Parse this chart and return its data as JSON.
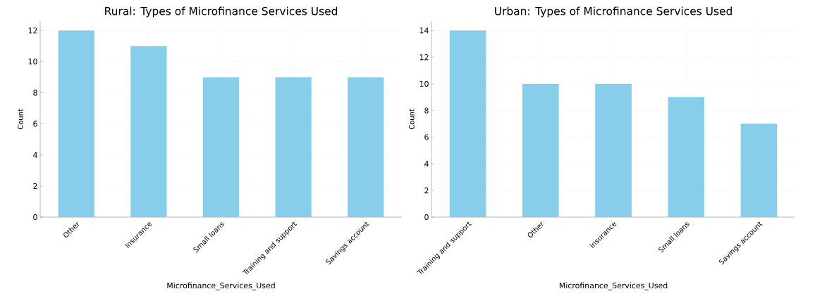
{
  "chart_data": [
    {
      "type": "bar",
      "title": "Rural: Types of Microfinance Services Used",
      "xlabel": "Microfinance_Services_Used",
      "ylabel": "Count",
      "categories": [
        "Other",
        "Insurance",
        "Small loans",
        "Training and support",
        "Savings account"
      ],
      "values": [
        12,
        11,
        9,
        9,
        9
      ],
      "color": "#87ceeb",
      "ylim": [
        0,
        12.6
      ],
      "yticks": [
        0,
        2,
        4,
        6,
        8,
        10,
        12
      ],
      "grid": true
    },
    {
      "type": "bar",
      "title": "Urban: Types of Microfinance Services Used",
      "xlabel": "Microfinance_Services_Used",
      "ylabel": "Count",
      "categories": [
        "Training and support",
        "Other",
        "Insurance",
        "Small loans",
        "Savings account"
      ],
      "values": [
        14,
        10,
        10,
        9,
        7
      ],
      "color": "#87ceeb",
      "ylim": [
        0,
        14.7
      ],
      "yticks": [
        0,
        2,
        4,
        6,
        8,
        10,
        12,
        14
      ],
      "grid": true
    }
  ]
}
